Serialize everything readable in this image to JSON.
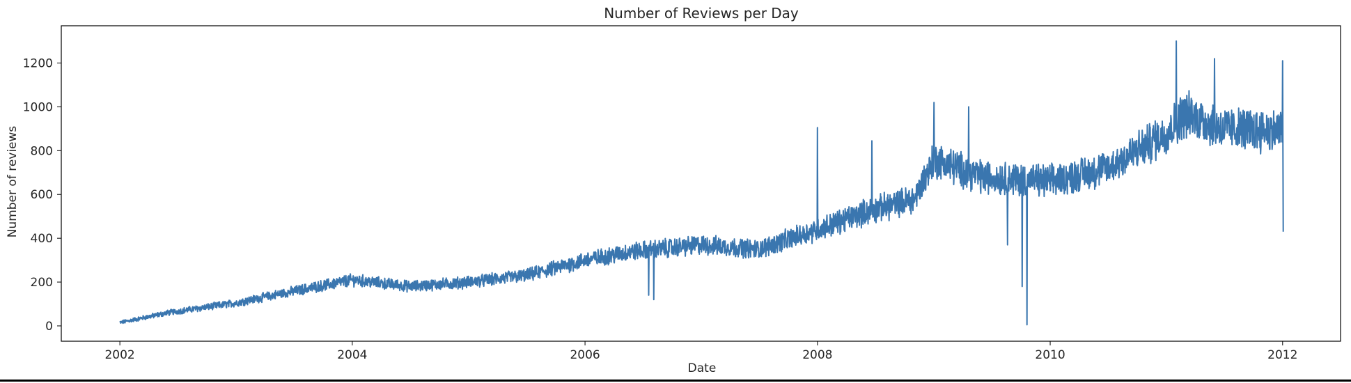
{
  "chart_data": {
    "type": "line",
    "title": "Number of Reviews per Day",
    "xlabel": "Date",
    "ylabel": "Number of reviews",
    "xlim": [
      "2001-07-01",
      "2012-07-01"
    ],
    "ylim": [
      -70,
      1370
    ],
    "x_ticks": [
      "2002",
      "2004",
      "2006",
      "2008",
      "2010",
      "2012"
    ],
    "y_ticks": [
      0,
      200,
      400,
      600,
      800,
      1000,
      1200
    ],
    "grid": false,
    "legend": "none",
    "colors": {
      "line": "#3a76af",
      "axis": "#000000",
      "text": "#262626"
    },
    "series": [
      {
        "frequency": "daily",
        "start": "2002-01-01",
        "end": "2012-01-01",
        "trend": [
          [
            "2002-01-01",
            15
          ],
          [
            "2002-06-01",
            60
          ],
          [
            "2003-01-01",
            105
          ],
          [
            "2003-06-01",
            150
          ],
          [
            "2004-01-01",
            210
          ],
          [
            "2004-07-01",
            180
          ],
          [
            "2005-01-01",
            200
          ],
          [
            "2005-07-01",
            230
          ],
          [
            "2006-01-01",
            300
          ],
          [
            "2006-06-01",
            340
          ],
          [
            "2007-01-01",
            370
          ],
          [
            "2007-07-01",
            350
          ],
          [
            "2008-01-01",
            440
          ],
          [
            "2008-06-01",
            520
          ],
          [
            "2008-11-01",
            580
          ],
          [
            "2009-01-01",
            760
          ],
          [
            "2009-06-01",
            680
          ],
          [
            "2010-01-01",
            660
          ],
          [
            "2010-07-01",
            720
          ],
          [
            "2011-01-01",
            880
          ],
          [
            "2011-03-01",
            970
          ],
          [
            "2011-07-01",
            900
          ],
          [
            "2012-01-01",
            890
          ]
        ],
        "notable_values": [
          [
            "2006-07-20",
            140
          ],
          [
            "2006-08-05",
            120
          ],
          [
            "2008-01-01",
            905
          ],
          [
            "2008-06-20",
            845
          ],
          [
            "2009-01-01",
            1020
          ],
          [
            "2009-04-20",
            1000
          ],
          [
            "2009-08-20",
            370
          ],
          [
            "2009-10-05",
            180
          ],
          [
            "2009-10-20",
            5
          ],
          [
            "2011-02-01",
            1300
          ],
          [
            "2011-06-01",
            1220
          ],
          [
            "2012-01-01",
            1210
          ],
          [
            "2012-01-03",
            430
          ]
        ]
      }
    ]
  }
}
